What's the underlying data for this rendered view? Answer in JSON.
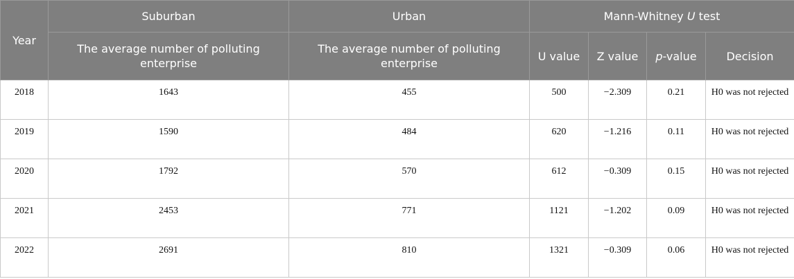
{
  "table": {
    "header": {
      "year": "Year",
      "suburban": "Suburban",
      "urban": "Urban",
      "mann_whitney_prefix": "Mann-Whitney ",
      "mann_whitney_italic": "U",
      "mann_whitney_suffix": " test",
      "suburban_sub": "The average number of polluting enterprise",
      "urban_sub": "The average number of polluting enterprise",
      "u_value": "U value",
      "z_value": "Z value",
      "p_value_italic": "p",
      "p_value_suffix": "-value",
      "decision": "Decision"
    },
    "rows": [
      {
        "year": "2018",
        "suburban": "1643",
        "urban": "455",
        "u": "500",
        "z": "−2.309",
        "p": "0.21",
        "decision": "H0 was not rejected"
      },
      {
        "year": "2019",
        "suburban": "1590",
        "urban": "484",
        "u": "620",
        "z": "−1.216",
        "p": "0.11",
        "decision": "H0 was not rejected"
      },
      {
        "year": "2020",
        "suburban": "1792",
        "urban": "570",
        "u": "612",
        "z": "−0.309",
        "p": "0.15",
        "decision": "H0 was not rejected"
      },
      {
        "year": "2021",
        "suburban": "2453",
        "urban": "771",
        "u": "1121",
        "z": "−1.202",
        "p": "0.09",
        "decision": "H0 was not rejected"
      },
      {
        "year": "2022",
        "suburban": "2691",
        "urban": "810",
        "u": "1321",
        "z": "−0.309",
        "p": "0.06",
        "decision": "H0 was not rejected"
      }
    ]
  }
}
